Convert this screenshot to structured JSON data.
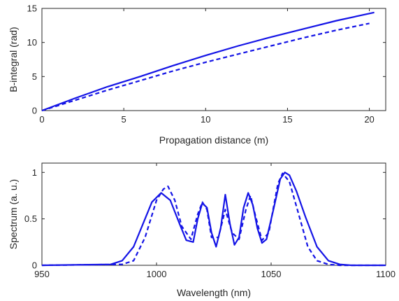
{
  "chart_data": [
    {
      "type": "line",
      "title": "",
      "xlabel": "Propagation distance (m)",
      "ylabel": "B-integral (rad)",
      "xlim": [
        0,
        21
      ],
      "ylim": [
        0,
        15
      ],
      "xticks": [
        0,
        5,
        10,
        15,
        20
      ],
      "xtick_labels": [
        "0",
        "5",
        "10",
        "15",
        "20"
      ],
      "yticks": [
        0,
        5,
        10,
        15
      ],
      "ytick_labels": [
        "0",
        "5",
        "10",
        "15"
      ],
      "grid": false,
      "legend": "none",
      "series": [
        {
          "style": "solid",
          "color": "#1414e6",
          "x": [
            0,
            2,
            4,
            6,
            8,
            10,
            12,
            14,
            16,
            18,
            20.3
          ],
          "y": [
            0,
            1.8,
            3.5,
            5.0,
            6.6,
            8.1,
            9.5,
            10.8,
            12.0,
            13.2,
            14.4
          ]
        },
        {
          "style": "dashed",
          "color": "#1414e6",
          "x": [
            0,
            2,
            4,
            6,
            8,
            10,
            12,
            14,
            16,
            18,
            20
          ],
          "y": [
            0,
            1.5,
            3.0,
            4.4,
            5.8,
            7.1,
            8.3,
            9.5,
            10.7,
            11.8,
            12.8
          ]
        }
      ]
    },
    {
      "type": "line",
      "title": "",
      "xlabel": "Wavelength (nm)",
      "ylabel": "Spectrum (a. u.)",
      "xlim": [
        950,
        1100
      ],
      "ylim": [
        0,
        1.1
      ],
      "xticks": [
        950,
        1000,
        1050,
        1100
      ],
      "xtick_labels": [
        "950",
        "1000",
        "1050",
        "1100"
      ],
      "yticks": [
        0,
        0.5,
        1
      ],
      "ytick_labels": [
        "0",
        "0.5",
        "1"
      ],
      "grid": false,
      "legend": "none",
      "series": [
        {
          "style": "solid",
          "color": "#1414e6",
          "x": [
            950,
            980,
            985,
            990,
            995,
            998,
            1002,
            1006,
            1010,
            1013,
            1016,
            1018,
            1020,
            1022,
            1024,
            1026,
            1028,
            1030,
            1032,
            1034,
            1036,
            1038,
            1040,
            1042,
            1044,
            1046,
            1048,
            1051,
            1054,
            1056,
            1058,
            1061,
            1065,
            1070,
            1075,
            1080,
            1085,
            1100
          ],
          "y": [
            0,
            0.01,
            0.05,
            0.2,
            0.5,
            0.68,
            0.78,
            0.7,
            0.45,
            0.27,
            0.25,
            0.5,
            0.67,
            0.62,
            0.35,
            0.2,
            0.4,
            0.76,
            0.45,
            0.22,
            0.3,
            0.62,
            0.78,
            0.65,
            0.4,
            0.24,
            0.28,
            0.6,
            0.93,
            1.0,
            0.97,
            0.8,
            0.52,
            0.2,
            0.05,
            0.01,
            0,
            0
          ]
        },
        {
          "style": "dashed",
          "color": "#1414e6",
          "x": [
            950,
            985,
            990,
            995,
            1000,
            1003,
            1005,
            1008,
            1011,
            1015,
            1018,
            1020,
            1022,
            1024,
            1027,
            1030,
            1033,
            1036,
            1039,
            1041,
            1043,
            1046,
            1049,
            1051,
            1053,
            1055,
            1058,
            1062,
            1066,
            1070,
            1075,
            1080,
            1100
          ],
          "y": [
            0,
            0.01,
            0.05,
            0.3,
            0.7,
            0.82,
            0.85,
            0.7,
            0.42,
            0.28,
            0.55,
            0.68,
            0.6,
            0.3,
            0.3,
            0.6,
            0.35,
            0.28,
            0.6,
            0.75,
            0.55,
            0.27,
            0.35,
            0.62,
            0.88,
            0.99,
            0.9,
            0.55,
            0.2,
            0.05,
            0.01,
            0,
            0
          ]
        }
      ]
    }
  ]
}
